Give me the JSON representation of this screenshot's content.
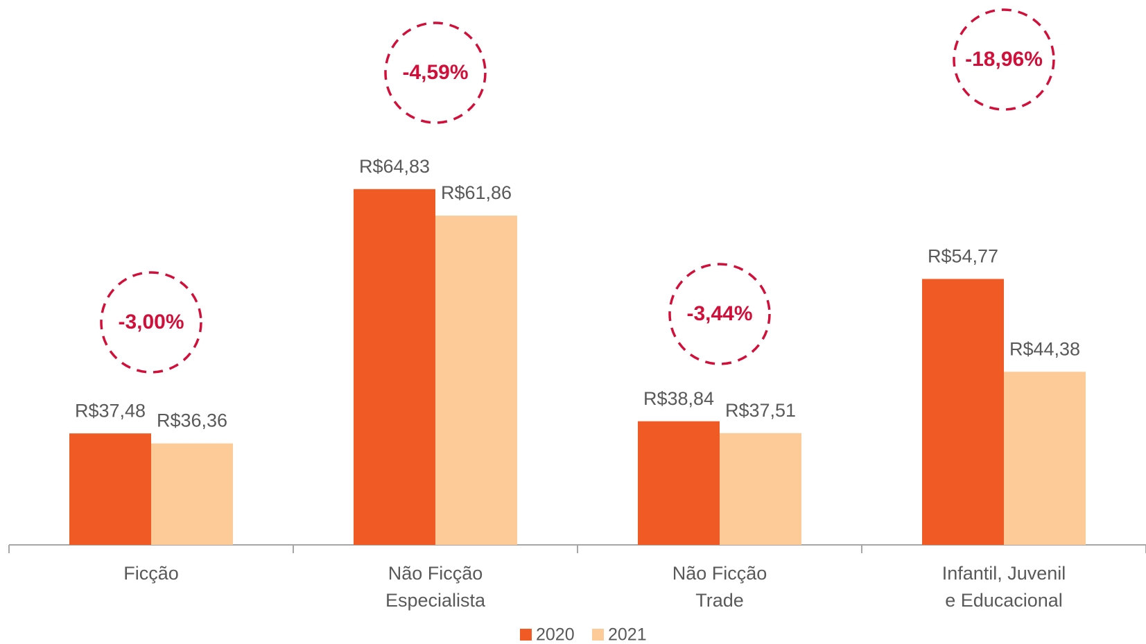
{
  "chart_data": {
    "type": "bar",
    "categories": [
      [
        "Ficção"
      ],
      [
        "Não Ficção",
        "Especialista"
      ],
      [
        "Não Ficção",
        "Trade"
      ],
      [
        "Infantil, Juvenil",
        "e Educacional"
      ]
    ],
    "series": [
      {
        "name": "2020",
        "color": "#f05a24",
        "values": [
          37.48,
          64.83,
          38.84,
          54.77
        ],
        "value_labels": [
          "R$37,48",
          "R$64,83",
          "R$38,84",
          "R$54,77"
        ]
      },
      {
        "name": "2021",
        "color": "#fdcb98",
        "values": [
          36.36,
          61.86,
          37.51,
          44.38
        ],
        "value_labels": [
          "R$36,36",
          "R$61,86",
          "R$37,51",
          "R$44,38"
        ]
      }
    ],
    "annotations": [
      "-3,00%",
      "-4,59%",
      "-3,44%",
      "-18,96%"
    ],
    "ylim": [
      25,
      86
    ],
    "legend": "bottom"
  }
}
